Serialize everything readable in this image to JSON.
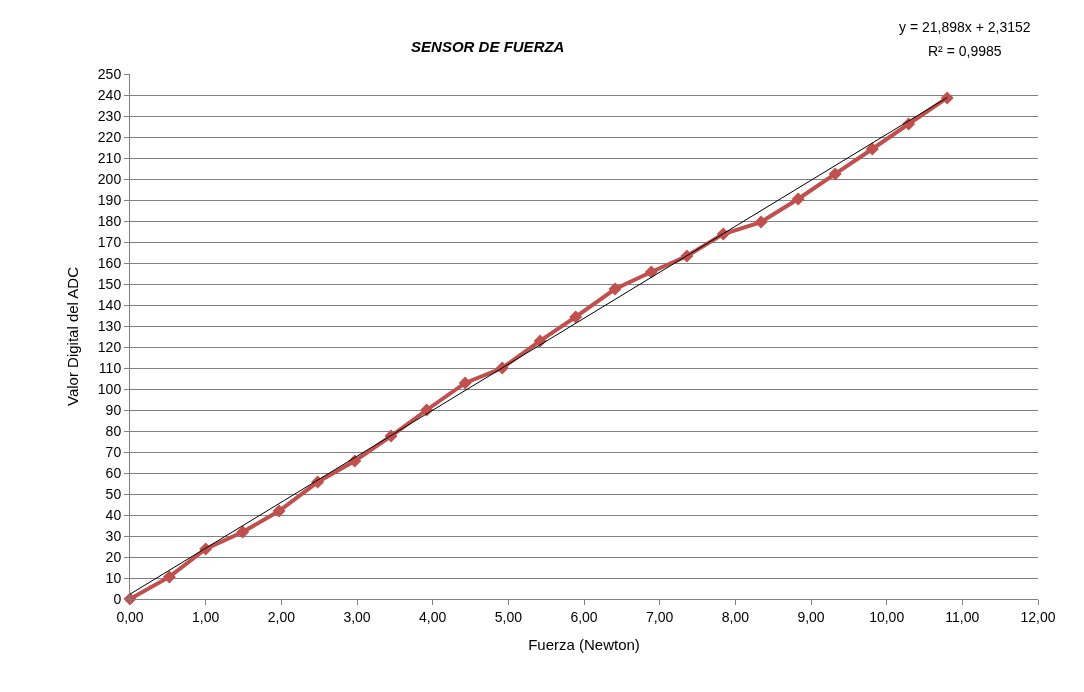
{
  "chart_data": {
    "type": "line",
    "title": "SENSOR DE FUERZA",
    "xlabel": "Fuerza (Newton)",
    "ylabel": "Valor Digital del ADC",
    "annotations": [
      "y = 21,898x + 2,3152",
      "R² = 0,9985"
    ],
    "series": [
      {
        "color": "#c0504d",
        "marker": "diamond",
        "x": [
          0,
          0.52,
          1.0,
          1.49,
          1.97,
          2.48,
          2.97,
          3.45,
          3.92,
          4.43,
          4.92,
          5.42,
          5.89,
          6.41,
          6.89,
          7.36,
          7.84,
          8.34,
          8.83,
          9.32,
          9.81,
          10.29,
          10.8
        ],
        "values": [
          0,
          10.5,
          23.8,
          31.9,
          41.9,
          55.7,
          65.7,
          77.6,
          90,
          102.9,
          110,
          122.9,
          134.3,
          147.6,
          155.7,
          163.3,
          173.8,
          179.5,
          190.5,
          202.4,
          214.3,
          226.2,
          238.6
        ]
      },
      {
        "color": "#000000",
        "marker": "none",
        "x": [
          0,
          10.8
        ],
        "values": [
          2.3,
          238.8
        ]
      }
    ],
    "xlim": [
      0,
      12
    ],
    "ylim": [
      0,
      250
    ],
    "xticks": [
      {
        "value": 0,
        "label": "0,00"
      },
      {
        "value": 1,
        "label": "1,00"
      },
      {
        "value": 2,
        "label": "2,00"
      },
      {
        "value": 3,
        "label": "3,00"
      },
      {
        "value": 4,
        "label": "4,00"
      },
      {
        "value": 5,
        "label": "5,00"
      },
      {
        "value": 6,
        "label": "6,00"
      },
      {
        "value": 7,
        "label": "7,00"
      },
      {
        "value": 8,
        "label": "8,00"
      },
      {
        "value": 9,
        "label": "9,00"
      },
      {
        "value": 10,
        "label": "10,00"
      },
      {
        "value": 11,
        "label": "11,00"
      },
      {
        "value": 12,
        "label": "12,00"
      }
    ],
    "yticks": [
      0,
      10,
      20,
      30,
      40,
      50,
      60,
      70,
      80,
      90,
      100,
      110,
      120,
      130,
      140,
      150,
      160,
      170,
      180,
      190,
      200,
      210,
      220,
      230,
      240,
      250
    ],
    "grid": "y"
  }
}
